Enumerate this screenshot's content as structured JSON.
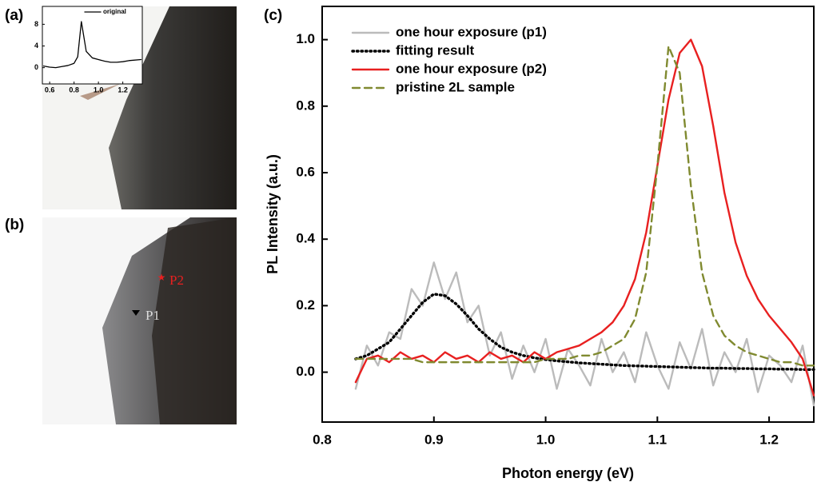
{
  "figure": {
    "panel_labels": [
      "(a)",
      "(b)",
      "(c)"
    ],
    "markers": [
      "P1",
      "P2"
    ]
  },
  "chart_data": [
    {
      "type": "line",
      "x": [
        0.55,
        0.6,
        0.65,
        0.7,
        0.75,
        0.8,
        0.83,
        0.86,
        0.9,
        0.95,
        1.0,
        1.05,
        1.1,
        1.15,
        1.2,
        1.25,
        1.35
      ],
      "series": [
        {
          "name": "original",
          "color": "#000000",
          "line_style": "solid",
          "values": [
            0.3,
            0.1,
            0,
            0.2,
            0.4,
            0.8,
            2,
            8.5,
            3,
            1.8,
            1.5,
            1.2,
            1,
            1,
            1.1,
            1.3,
            1.5
          ]
        }
      ],
      "xlim": [
        0.54,
        1.36
      ],
      "ylim": [
        -3,
        11.3
      ],
      "xticks": [
        0.6,
        0.8,
        {
          "value": 1.0,
          "label": "1.0"
        },
        1.2
      ],
      "yticks": [
        0,
        4,
        8
      ],
      "legend": "upper right"
    },
    {
      "type": "line",
      "x_label": "Photon energy (eV)",
      "y_label": "PL Intensity (a.u.)",
      "x": [
        0.83,
        0.84,
        0.85,
        0.86,
        0.87,
        0.88,
        0.89,
        0.9,
        0.91,
        0.92,
        0.93,
        0.94,
        0.95,
        0.96,
        0.97,
        0.98,
        0.99,
        1.0,
        1.01,
        1.02,
        1.03,
        1.04,
        1.05,
        1.06,
        1.07,
        1.08,
        1.09,
        1.1,
        1.11,
        1.12,
        1.13,
        1.14,
        1.15,
        1.16,
        1.17,
        1.18,
        1.19,
        1.2,
        1.21,
        1.22,
        1.23,
        1.24
      ],
      "series": [
        {
          "name": "one hour exposure (p1)",
          "color": "#bbbbbb",
          "line_style": "solid",
          "values": [
            -0.05,
            0.08,
            0.02,
            0.12,
            0.1,
            0.25,
            0.2,
            0.33,
            0.22,
            0.3,
            0.15,
            0.2,
            0.05,
            0.12,
            -0.02,
            0.08,
            0.0,
            0.1,
            -0.05,
            0.07,
            0.02,
            -0.04,
            0.1,
            0.0,
            0.06,
            -0.03,
            0.12,
            0.02,
            -0.05,
            0.09,
            0.01,
            0.13,
            -0.04,
            0.06,
            0.0,
            0.1,
            -0.06,
            0.05,
            0.02,
            -0.03,
            0.08,
            -0.1
          ]
        },
        {
          "name": "fitting result",
          "color": "#000000",
          "line_style": "dotted",
          "values": [
            0.04,
            0.05,
            0.07,
            0.09,
            0.13,
            0.17,
            0.21,
            0.235,
            0.23,
            0.205,
            0.17,
            0.13,
            0.1,
            0.075,
            0.06,
            0.05,
            0.043,
            0.038,
            0.034,
            0.031,
            0.028,
            0.026,
            0.024,
            0.022,
            0.02,
            0.019,
            0.018,
            0.017,
            0.016,
            0.015,
            0.014,
            0.013,
            0.012,
            0.012,
            0.011,
            0.011,
            0.01,
            0.01,
            0.009,
            0.009,
            0.008,
            0.008
          ]
        },
        {
          "name": "one hour exposure (p2)",
          "color": "#e82020",
          "line_style": "solid",
          "values": [
            -0.03,
            0.04,
            0.05,
            0.03,
            0.06,
            0.04,
            0.05,
            0.03,
            0.06,
            0.04,
            0.05,
            0.03,
            0.06,
            0.04,
            0.05,
            0.03,
            0.06,
            0.04,
            0.06,
            0.07,
            0.08,
            0.1,
            0.12,
            0.15,
            0.2,
            0.28,
            0.42,
            0.62,
            0.82,
            0.96,
            1.0,
            0.92,
            0.74,
            0.54,
            0.39,
            0.29,
            0.22,
            0.17,
            0.13,
            0.09,
            0.04,
            -0.07
          ]
        },
        {
          "name": "pristine 2L sample",
          "color": "#808a30",
          "line_style": "dashed",
          "values": [
            0.04,
            0.04,
            0.04,
            0.04,
            0.04,
            0.04,
            0.03,
            0.03,
            0.03,
            0.03,
            0.03,
            0.03,
            0.03,
            0.03,
            0.03,
            0.03,
            0.03,
            0.04,
            0.04,
            0.04,
            0.05,
            0.05,
            0.06,
            0.08,
            0.1,
            0.16,
            0.3,
            0.62,
            0.98,
            0.9,
            0.56,
            0.3,
            0.17,
            0.11,
            0.08,
            0.06,
            0.05,
            0.04,
            0.03,
            0.03,
            0.02,
            0.02
          ]
        }
      ],
      "xlim": [
        0.8,
        1.24
      ],
      "ylim": [
        -0.15,
        1.1
      ],
      "xticks": [
        0.8,
        0.9,
        {
          "value": 1.0,
          "label": "1.0"
        },
        1.1,
        1.2
      ],
      "yticks": [
        {
          "value": 0,
          "label": "0.0"
        },
        0.2,
        0.4,
        0.6,
        0.8,
        {
          "value": 1.0,
          "label": "1.0"
        }
      ],
      "legend": "upper left"
    }
  ]
}
